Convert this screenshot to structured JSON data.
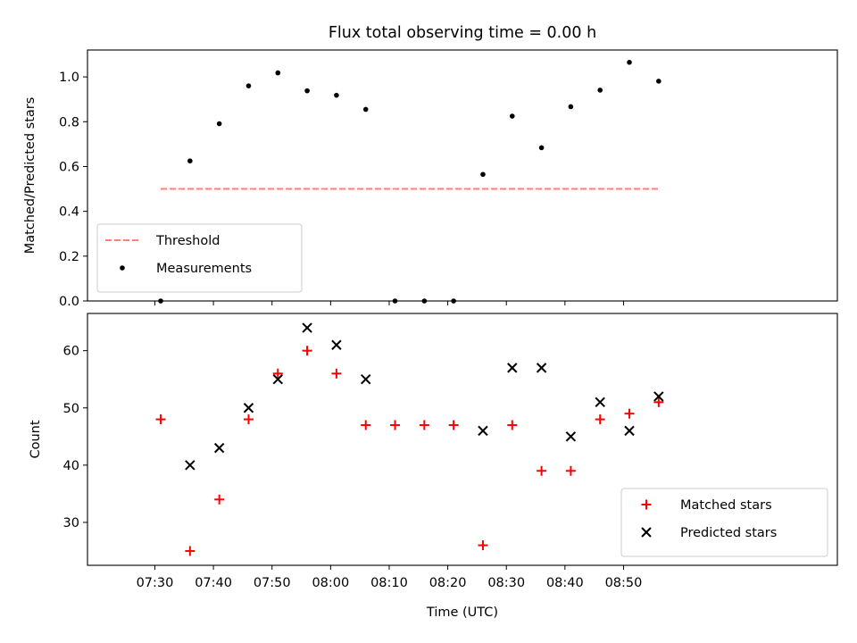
{
  "title": "Flux total observing time = 0.00 h",
  "chart_data": [
    {
      "type": "scatter",
      "ylabel": "Matched/Predicted stars",
      "ylim": [
        0,
        1.12
      ],
      "yticks": [
        "0.0",
        "0.2",
        "0.4",
        "0.6",
        "0.8",
        "1.0"
      ],
      "ytick_values": [
        0,
        0.2,
        0.4,
        0.6,
        0.8,
        1.0
      ],
      "xlim_minutes": [
        438.5,
        566.5
      ],
      "legend": "lower-left",
      "threshold": {
        "name": "Threshold",
        "value": 0.5,
        "x_start": "07:31",
        "x_end": "08:56",
        "color": "#ff7f7f"
      },
      "series": [
        {
          "name": "Measurements",
          "color": "#000000",
          "x": [
            "07:31",
            "07:36",
            "07:41",
            "07:46",
            "07:51",
            "07:56",
            "08:01",
            "08:06",
            "08:11",
            "08:16",
            "08:21",
            "08:26",
            "08:31",
            "08:36",
            "08:41",
            "08:46",
            "08:51",
            "08:56"
          ],
          "y": [
            0.0,
            0.625,
            0.791,
            0.96,
            1.018,
            0.938,
            0.918,
            0.855,
            0.0,
            0.0,
            0.0,
            0.565,
            0.825,
            0.684,
            0.867,
            0.941,
            1.065,
            0.981
          ]
        }
      ]
    },
    {
      "type": "scatter",
      "ylabel": "Count",
      "xlabel": "Time (UTC)",
      "ylim": [
        22.5,
        66.5
      ],
      "yticks": [
        "30",
        "40",
        "50",
        "60"
      ],
      "ytick_values": [
        30,
        40,
        50,
        60
      ],
      "xticks": [
        "07:30",
        "07:40",
        "07:50",
        "08:00",
        "08:10",
        "08:20",
        "08:30",
        "08:40",
        "08:50"
      ],
      "xlim_minutes": [
        438.5,
        566.5
      ],
      "legend": "lower-right",
      "series": [
        {
          "name": "Matched stars",
          "marker": "plus",
          "color": "#ff0000",
          "x": [
            "07:31",
            "07:36",
            "07:41",
            "07:46",
            "07:51",
            "07:56",
            "08:01",
            "08:06",
            "08:11",
            "08:16",
            "08:21",
            "08:26",
            "08:31",
            "08:36",
            "08:41",
            "08:46",
            "08:51",
            "08:56"
          ],
          "y": [
            48,
            25,
            34,
            48,
            56,
            60,
            56,
            47,
            47,
            47,
            47,
            26,
            47,
            39,
            39,
            48,
            49,
            51
          ]
        },
        {
          "name": "Predicted stars",
          "marker": "x",
          "color": "#000000",
          "x": [
            "07:36",
            "07:41",
            "07:46",
            "07:51",
            "07:56",
            "08:01",
            "08:06",
            "08:26",
            "08:31",
            "08:36",
            "08:41",
            "08:46",
            "08:51",
            "08:56"
          ],
          "y": [
            40,
            43,
            50,
            55,
            64,
            61,
            55,
            46,
            57,
            57,
            45,
            51,
            46,
            52
          ]
        }
      ]
    }
  ]
}
